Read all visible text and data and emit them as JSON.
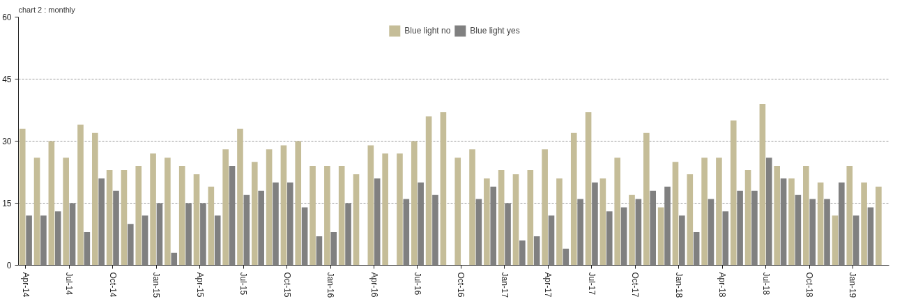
{
  "chart_data": {
    "type": "bar",
    "title": "chart 2 : monthly",
    "categories": [
      "Apr-14",
      null,
      null,
      "Jul-14",
      null,
      null,
      "Oct-14",
      null,
      null,
      "Jan-15",
      null,
      null,
      "Apr-15",
      null,
      null,
      "Jul-15",
      null,
      null,
      "Oct-15",
      null,
      null,
      "Jan-16",
      null,
      null,
      "Apr-16",
      null,
      null,
      "Jul-16",
      null,
      null,
      "Oct-16",
      null,
      null,
      "Jan-17",
      null,
      null,
      "Apr-17",
      null,
      null,
      "Jul-17",
      null,
      null,
      "Oct-17",
      null,
      null,
      "Jan-18",
      null,
      null,
      "Apr-18",
      null,
      null,
      "Jul-18",
      null,
      null,
      "Oct-18",
      null,
      null,
      "Jan-19",
      null,
      null
    ],
    "series": [
      {
        "name": "Blue light no",
        "color": "#c5bd98",
        "values": [
          33,
          26,
          30,
          26,
          34,
          32,
          23,
          23,
          24,
          27,
          26,
          24,
          22,
          19,
          28,
          33,
          25,
          28,
          29,
          30,
          24,
          24,
          24,
          22,
          29,
          27,
          27,
          30,
          36,
          37,
          26,
          28,
          21,
          23,
          22,
          23,
          28,
          21,
          32,
          37,
          21,
          26,
          17,
          32,
          14,
          25,
          22,
          26,
          26,
          35,
          23,
          39,
          24,
          21,
          24,
          20,
          12,
          24,
          20,
          19
        ]
      },
      {
        "name": "Blue light yes",
        "color": "#808080",
        "values": [
          12,
          12,
          13,
          15,
          8,
          21,
          18,
          10,
          12,
          15,
          3,
          15,
          15,
          12,
          24,
          17,
          18,
          20,
          20,
          14,
          7,
          8,
          15,
          null,
          21,
          null,
          16,
          20,
          17,
          null,
          null,
          16,
          19,
          15,
          6,
          7,
          12,
          4,
          16,
          20,
          13,
          14,
          16,
          18,
          19,
          12,
          8,
          16,
          13,
          18,
          18,
          26,
          21,
          17,
          16,
          16,
          20,
          12,
          14,
          null
        ]
      }
    ],
    "ylim": [
      0,
      60
    ],
    "yticks": [
      0,
      15,
      30,
      45,
      60
    ],
    "grid": "y",
    "legend": "top"
  }
}
